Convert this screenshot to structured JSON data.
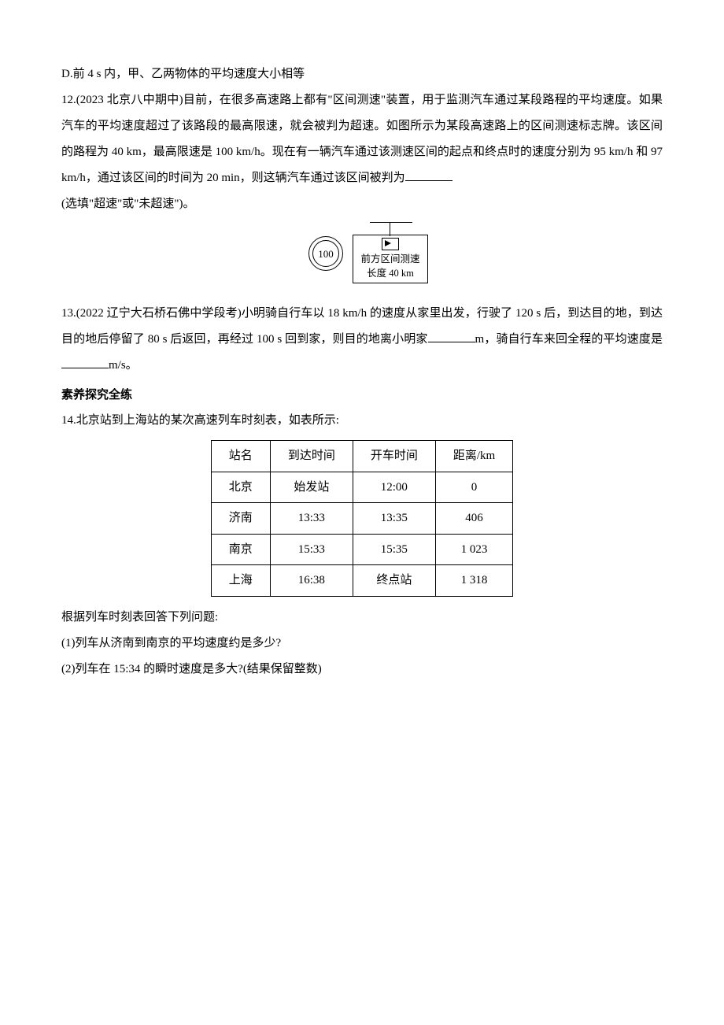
{
  "optionD": "D.前 4 s 内，甲、乙两物体的平均速度大小相等",
  "q12": {
    "prefix": "12.(2023 北京八中期中)目前，在很多高速路上都有\"区间测速\"装置，用于监测汽车通过某段路程的平均速度。如果汽车的平均速度超过了该路段的最高限速，就会被判为超速。如图所示为某段高速路上的区间测速标志牌。该区间的路程为 40 km，最高限速是 100 km/h。现在有一辆汽车通过该测速区间的起点和终点时的速度分别为 95 km/h 和 97 km/h，通过该区间的时间为 20 min，则这辆汽车通过该区间被判为",
    "suffix": "(选填\"超速\"或\"未超速\")。"
  },
  "sign": {
    "limit": "100",
    "line1": "前方区间测速",
    "line2": "长度 40 km"
  },
  "q13": {
    "part1": "13.(2022 辽宁大石桥石佛中学段考)小明骑自行车以 18 km/h 的速度从家里出发，行驶了 120 s 后，到达目的地，到达目的地后停留了 80 s 后返回，再经过 100 s 回到家，则目的地离小明家",
    "unit1": "m，骑自行车来回全程的平均速度是",
    "unit2": "m/s。"
  },
  "sectionTitle": "素养探究全练",
  "q14": {
    "intro": "14.北京站到上海站的某次高速列车时刻表，如表所示:",
    "headers": [
      "站名",
      "到达时间",
      "开车时间",
      "距离/km"
    ],
    "rows": [
      [
        "北京",
        "始发站",
        "12:00",
        "0"
      ],
      [
        "济南",
        "13:33",
        "13:35",
        "406"
      ],
      [
        "南京",
        "15:33",
        "15:35",
        "1 023"
      ],
      [
        "上海",
        "16:38",
        "终点站",
        "1 318"
      ]
    ],
    "afterTable": "根据列车时刻表回答下列问题:",
    "sub1": "(1)列车从济南到南京的平均速度约是多少?",
    "sub2": "(2)列车在 15:34 的瞬时速度是多大?(结果保留整数)"
  }
}
